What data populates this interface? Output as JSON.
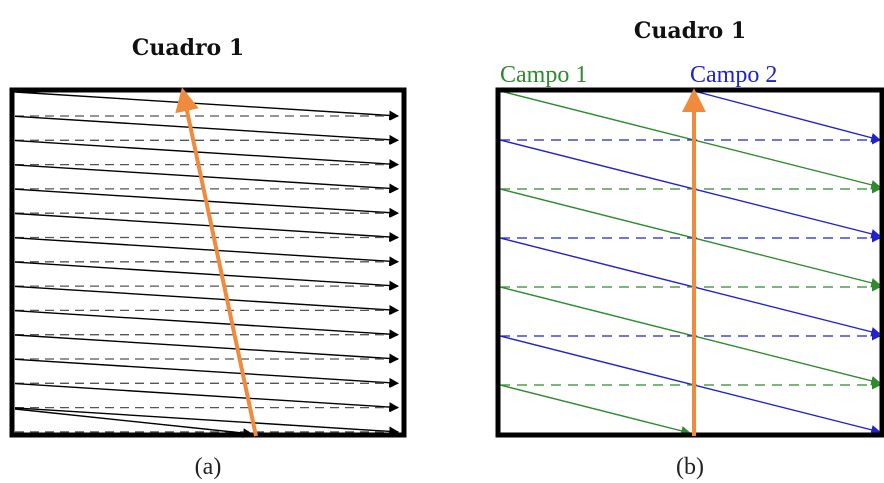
{
  "figures": [
    {
      "id": "a",
      "title": "Cuadro 1",
      "caption": "(a)",
      "field_labels": []
    },
    {
      "id": "b",
      "title": "Cuadro 1",
      "caption": "(b)",
      "field_labels": [
        "Campo 1",
        "Campo 2"
      ]
    }
  ],
  "colors": {
    "frame": "#000000",
    "progressive_scan": "#000000",
    "progressive_retrace": "#555555",
    "field1": "#2e8b2e",
    "field2": "#2222cc",
    "vertical_retrace": "#f08a3c"
  }
}
